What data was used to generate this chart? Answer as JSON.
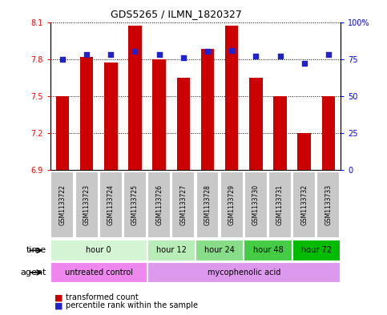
{
  "title": "GDS5265 / ILMN_1820327",
  "samples": [
    "GSM1133722",
    "GSM1133723",
    "GSM1133724",
    "GSM1133725",
    "GSM1133726",
    "GSM1133727",
    "GSM1133728",
    "GSM1133729",
    "GSM1133730",
    "GSM1133731",
    "GSM1133732",
    "GSM1133733"
  ],
  "transformed_count": [
    7.5,
    7.82,
    7.77,
    8.07,
    7.8,
    7.65,
    7.88,
    8.07,
    7.65,
    7.5,
    7.2,
    7.5
  ],
  "percentile_rank": [
    75,
    78,
    78,
    80,
    78,
    76,
    80,
    81,
    77,
    77,
    72,
    78
  ],
  "y_min": 6.9,
  "y_max": 8.1,
  "y_ticks": [
    6.9,
    7.2,
    7.5,
    7.8,
    8.1
  ],
  "y2_ticks": [
    0,
    25,
    50,
    75,
    100
  ],
  "y2_tick_labels": [
    "0",
    "25",
    "50",
    "75",
    "100%"
  ],
  "bar_color": "#cc0000",
  "dot_color": "#2222cc",
  "time_colors": [
    "#d4f5d4",
    "#b8edb8",
    "#88dd88",
    "#44cc44",
    "#00bb00"
  ],
  "time_labels": [
    "hour 0",
    "hour 12",
    "hour 24",
    "hour 48",
    "hour 72"
  ],
  "time_starts": [
    0,
    4,
    6,
    8,
    10
  ],
  "time_ends": [
    4,
    6,
    8,
    10,
    12
  ],
  "agent_colors": [
    "#ee88ee",
    "#dd99ee"
  ],
  "agent_labels": [
    "untreated control",
    "mycophenolic acid"
  ],
  "agent_starts": [
    0,
    4
  ],
  "agent_ends": [
    4,
    12
  ],
  "legend_bar_label": "transformed count",
  "legend_dot_label": "percentile rank within the sample",
  "sample_box_color": "#c8c8c8",
  "fig_width": 4.83,
  "fig_height": 3.93
}
